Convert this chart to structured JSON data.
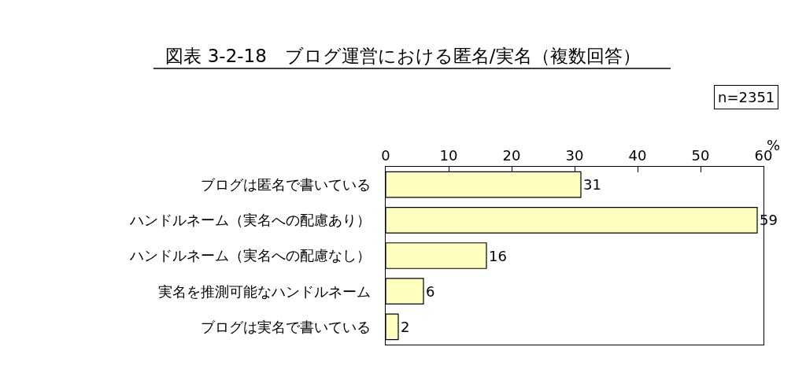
{
  "chart_data": {
    "type": "bar",
    "orientation": "horizontal",
    "title": "図表 3-2-18　ブログ運営における匿名/実名（複数回答）",
    "categories": [
      "ブログは匿名で書いている",
      "ハンドルネーム（実名への配慮あり）",
      "ハンドルネーム（実名への配慮なし）",
      "実名を推測可能なハンドルネーム",
      "ブログは実名で書いている"
    ],
    "values": [
      31,
      59,
      16,
      6,
      2
    ],
    "color": "#ffffc0",
    "xlim": [
      0,
      60
    ],
    "xticks": [
      0,
      10,
      20,
      30,
      40,
      50,
      60
    ],
    "xlabel": "%",
    "data_labels": true,
    "annotations": [
      "n=2351"
    ]
  }
}
